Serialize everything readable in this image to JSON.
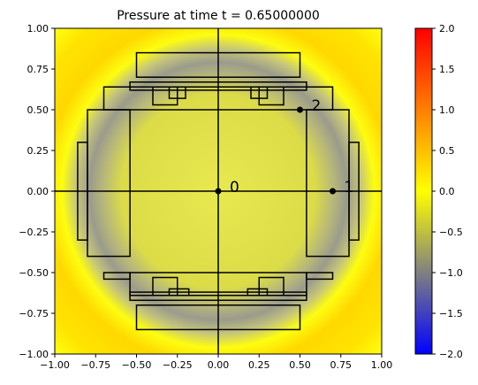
{
  "chart_data": {
    "type": "heatmap",
    "title": "Pressure at time t =     0.65000000",
    "xlim": [
      -1.0,
      1.0
    ],
    "ylim": [
      -1.0,
      1.0
    ],
    "x_ticks": [
      "−1.00",
      "−0.75",
      "−0.50",
      "−0.25",
      "0.00",
      "0.25",
      "0.50",
      "0.75",
      "1.00"
    ],
    "y_ticks": [
      "1.00",
      "0.75",
      "0.50",
      "0.25",
      "0.00",
      "−0.25",
      "−0.50",
      "−0.75",
      "−1.00"
    ],
    "colorbar": {
      "range": [
        -2.0,
        2.0
      ],
      "ticks": [
        "2.0",
        "1.5",
        "1.0",
        "0.5",
        "0.0",
        "−0.5",
        "−1.0",
        "−1.5",
        "−2.0"
      ],
      "colors": [
        "#0000ff",
        "#808080",
        "#ffff00",
        "#ff0000"
      ]
    },
    "gauges": [
      {
        "label": "0",
        "x": 0.0,
        "y": 0.0
      },
      {
        "label": "1",
        "x": 0.7,
        "y": 0.0
      },
      {
        "label": "2",
        "x": 0.5,
        "y": 0.5
      }
    ],
    "grid_lines": {
      "x": 0.0,
      "y": 0.0
    }
  }
}
